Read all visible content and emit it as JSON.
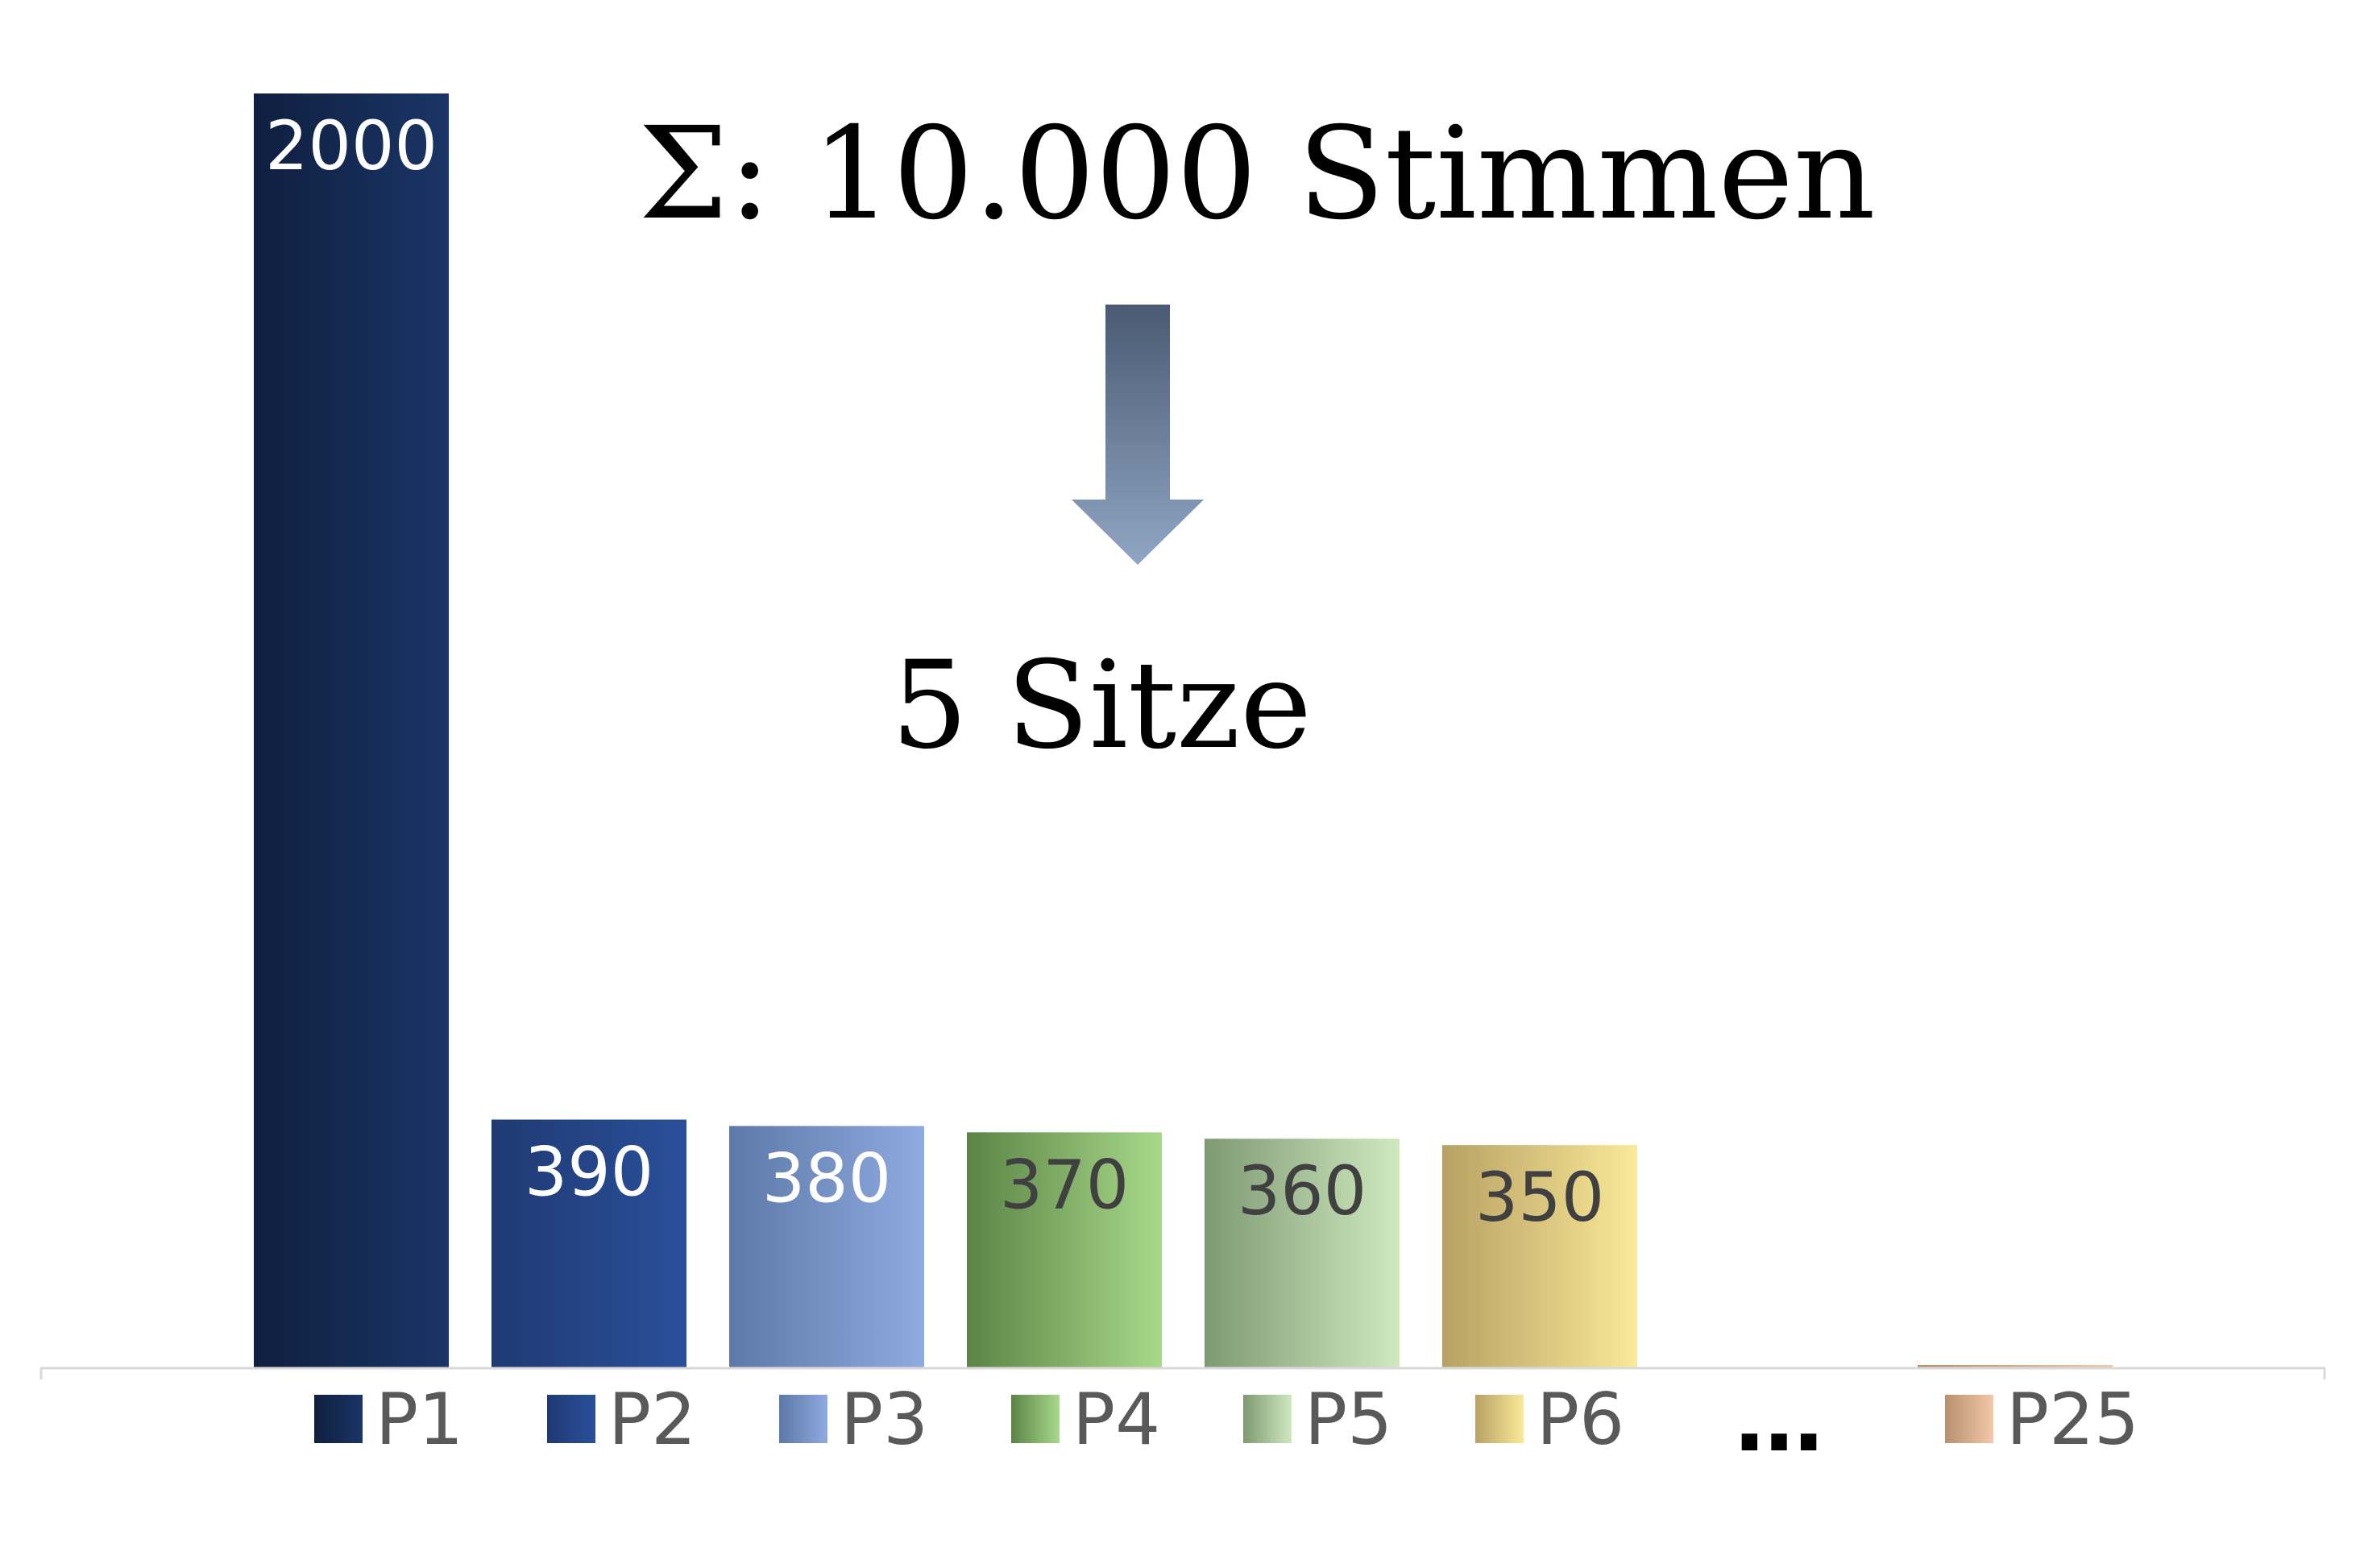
{
  "chart_data": {
    "type": "bar",
    "categories": [
      "P1",
      "P2",
      "P3",
      "P4",
      "P5",
      "P6",
      "P25"
    ],
    "values": [
      2000,
      390,
      380,
      370,
      360,
      350,
      5
    ],
    "value_labels": [
      "2000",
      "390",
      "380",
      "370",
      "360",
      "350",
      ""
    ],
    "ylim": [
      0,
      2000
    ],
    "grid": false,
    "legend": {
      "placement": "bottom",
      "entries": [
        "P1",
        "P2",
        "P3",
        "P4",
        "P5",
        "P6",
        "P25"
      ],
      "gap_marker": "…"
    },
    "series_colors": [
      [
        "#0f1f3f",
        "#1a3566"
      ],
      [
        "#1f3a73",
        "#2a4f9a"
      ],
      [
        "#5c79a8",
        "#8faae0"
      ],
      [
        "#5b8445",
        "#a8d98a"
      ],
      [
        "#7e9a72",
        "#cfe8c0"
      ],
      [
        "#b8a164",
        "#fae998"
      ],
      [
        "#b89070",
        "#f3c8a8"
      ]
    ],
    "label_colors": [
      "#ffffff",
      "#ffffff",
      "#ffffff",
      "#404040",
      "#404040",
      "#404040",
      "#404040"
    ]
  },
  "annotations": {
    "total_votes": "Σ: 10.000 Stimmen",
    "seats": "5 Sitze"
  },
  "arrow_color": [
    "#4a5a72",
    "#8fa6c4"
  ],
  "axis_color": "#d9d9d9"
}
